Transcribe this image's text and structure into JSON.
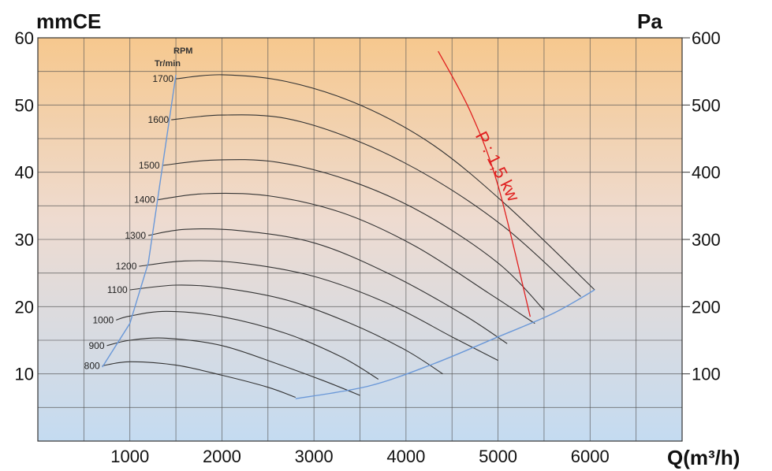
{
  "chart_data": {
    "type": "line",
    "title": "",
    "y_left_label": "mmCE",
    "y_right_label": "Pa",
    "xlabel": "Q(m³/h)",
    "xlim": [
      0,
      7000
    ],
    "ylim": [
      0,
      60
    ],
    "x_ticks": [
      "1000",
      "2000",
      "3000",
      "4000",
      "5000",
      "6000"
    ],
    "y_left_ticks": [
      "10",
      "20",
      "30",
      "40",
      "50",
      "60"
    ],
    "y_right_ticks": [
      "100",
      "200",
      "300",
      "400",
      "500",
      "600"
    ],
    "rpm_header": [
      "RPM",
      "Tr/min"
    ],
    "grid": true,
    "series": [
      {
        "name": "800",
        "points": [
          [
            700,
            11.2
          ],
          [
            1000,
            11.8
          ],
          [
            1500,
            11.3
          ],
          [
            2000,
            9.8
          ],
          [
            2500,
            8.0
          ],
          [
            2800,
            6.5
          ]
        ]
      },
      {
        "name": "900",
        "points": [
          [
            750,
            14.2
          ],
          [
            1000,
            15.0
          ],
          [
            1400,
            15.3
          ],
          [
            2000,
            14.2
          ],
          [
            2600,
            11.5
          ],
          [
            3100,
            9.0
          ],
          [
            3500,
            6.8
          ]
        ]
      },
      {
        "name": "1000",
        "points": [
          [
            850,
            18.0
          ],
          [
            1000,
            18.6
          ],
          [
            1400,
            19.3
          ],
          [
            2000,
            18.5
          ],
          [
            2700,
            16.0
          ],
          [
            3300,
            12.5
          ],
          [
            3700,
            9.2
          ]
        ]
      },
      {
        "name": "1100",
        "points": [
          [
            1000,
            22.5
          ],
          [
            1500,
            23.2
          ],
          [
            2000,
            22.8
          ],
          [
            2700,
            21.0
          ],
          [
            3400,
            17.5
          ],
          [
            4000,
            13.5
          ],
          [
            4400,
            10.0
          ]
        ]
      },
      {
        "name": "1200",
        "points": [
          [
            1100,
            26.0
          ],
          [
            1600,
            26.8
          ],
          [
            2200,
            26.5
          ],
          [
            3000,
            24.5
          ],
          [
            3800,
            20.5
          ],
          [
            4500,
            15.5
          ],
          [
            5000,
            12.0
          ]
        ]
      },
      {
        "name": "1300",
        "points": [
          [
            1200,
            30.6
          ],
          [
            1600,
            31.5
          ],
          [
            2200,
            31.3
          ],
          [
            3000,
            29.5
          ],
          [
            3800,
            25.0
          ],
          [
            4600,
            19.0
          ],
          [
            5100,
            14.5
          ]
        ]
      },
      {
        "name": "1400",
        "points": [
          [
            1300,
            35.9
          ],
          [
            1800,
            36.8
          ],
          [
            2500,
            36.5
          ],
          [
            3300,
            34.0
          ],
          [
            4100,
            29.0
          ],
          [
            4900,
            22.0
          ],
          [
            5400,
            17.5
          ]
        ]
      },
      {
        "name": "1500",
        "points": [
          [
            1350,
            41.0
          ],
          [
            1900,
            41.8
          ],
          [
            2600,
            41.5
          ],
          [
            3400,
            38.7
          ],
          [
            4200,
            33.8
          ],
          [
            5000,
            26.5
          ],
          [
            5500,
            19.5
          ]
        ]
      },
      {
        "name": "1600",
        "points": [
          [
            1450,
            47.8
          ],
          [
            2000,
            48.5
          ],
          [
            2700,
            48.0
          ],
          [
            3500,
            44.5
          ],
          [
            4300,
            39.0
          ],
          [
            5100,
            31.5
          ],
          [
            5900,
            21.5
          ]
        ]
      },
      {
        "name": "1700",
        "points": [
          [
            1500,
            53.9
          ],
          [
            2000,
            54.5
          ],
          [
            2700,
            53.5
          ],
          [
            3500,
            50.0
          ],
          [
            4300,
            44.0
          ],
          [
            5100,
            35.0
          ],
          [
            6050,
            22.5
          ]
        ]
      }
    ],
    "envelope_left": [
      [
        700,
        11.0
      ],
      [
        1000,
        17.5
      ],
      [
        1200,
        26.5
      ],
      [
        1500,
        54.5
      ]
    ],
    "envelope_bottom": [
      [
        2800,
        6.3
      ],
      [
        3600,
        8.2
      ],
      [
        4300,
        11.5
      ],
      [
        5000,
        15.5
      ],
      [
        5600,
        19.0
      ],
      [
        6050,
        22.5
      ]
    ],
    "power_line": {
      "label": "P : 1,5 kw",
      "points": [
        [
          4350,
          58.0
        ],
        [
          4700,
          49.0
        ],
        [
          5000,
          38.0
        ],
        [
          5350,
          18.5
        ]
      ]
    },
    "colors": {
      "curve": "#333333",
      "envelope": "#6a98d8",
      "power": "#e02020",
      "grid": "#555555",
      "bg_top": "#f6c88e",
      "bg_bottom": "#c4dbf1"
    }
  }
}
